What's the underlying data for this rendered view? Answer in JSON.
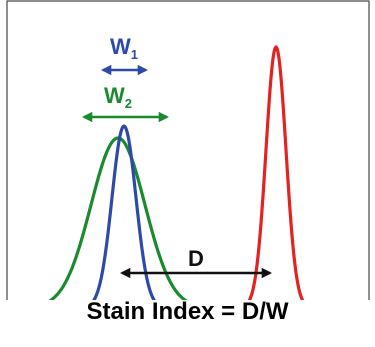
{
  "diagram": {
    "title": "Stain Index = D/W",
    "labels": {
      "w1_main": "W",
      "w1_sub": "1",
      "w2_main": "W",
      "w2_sub": "2",
      "d": "D"
    },
    "colors": {
      "negative_wide_peak": "#1b8a2f",
      "negative_narrow_peak": "#2e4aa8",
      "positive_peak": "#e32322",
      "d_arrow": "#111111",
      "axis": "#444444"
    }
  }
}
